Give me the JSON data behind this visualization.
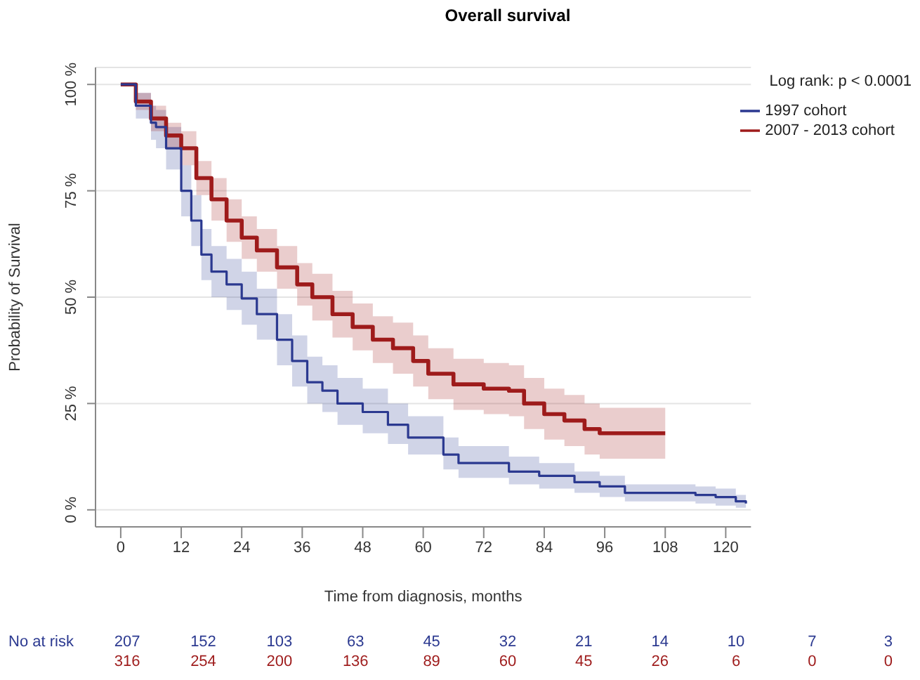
{
  "chart_data": {
    "type": "step",
    "title": "Overall survival",
    "xlabel": "Time from diagnosis, months",
    "ylabel": "Probability of Survival",
    "xlim": [
      -5,
      125
    ],
    "xticks": [
      0,
      12,
      24,
      36,
      48,
      60,
      72,
      84,
      96,
      108,
      120
    ],
    "ylim": [
      -4,
      104
    ],
    "yticks": [
      {
        "value": 0,
        "label": "0 %"
      },
      {
        "value": 25,
        "label": "25 %"
      },
      {
        "value": 50,
        "label": "50 %"
      },
      {
        "value": 75,
        "label": "75 %"
      },
      {
        "value": 100,
        "label": "100 %"
      }
    ],
    "grid": "y",
    "legend": "top right",
    "line_style": "solid",
    "series": [
      {
        "name": "1997 cohort",
        "color": "#2b3990",
        "x": [
          0,
          3,
          6,
          7,
          9,
          12,
          14,
          16,
          18,
          21,
          24,
          27,
          31,
          34,
          37,
          40,
          43,
          48,
          53,
          57,
          60,
          64,
          67,
          72,
          77,
          83,
          90,
          95,
          100,
          105,
          114,
          118,
          122,
          124
        ],
        "values": [
          100,
          95,
          91,
          90,
          85,
          75,
          68,
          60,
          56,
          53,
          49.7,
          46,
          40,
          35,
          30,
          28,
          25,
          23,
          20,
          17,
          17,
          13,
          11,
          11,
          9,
          8,
          6.5,
          5.5,
          4,
          4,
          3.5,
          3,
          2,
          1.5
        ],
        "lower": [
          100,
          92,
          87,
          85,
          80,
          69,
          62,
          54,
          50,
          47,
          43.5,
          40,
          34,
          29,
          25,
          23,
          20,
          18,
          15.5,
          13,
          13,
          9.5,
          7.5,
          7.5,
          6,
          5,
          4,
          3,
          2,
          2,
          1.5,
          1,
          0.5,
          0.5
        ],
        "upper": [
          100,
          98,
          95,
          94,
          90,
          81,
          74,
          66,
          62,
          59,
          56,
          52,
          46,
          41,
          36,
          34,
          31,
          28.5,
          25,
          22,
          22,
          17,
          15,
          15,
          12.5,
          11,
          9,
          8,
          6,
          6,
          5.5,
          5,
          3.5,
          3
        ]
      },
      {
        "name": "2007 - 2013 cohort",
        "color": "#9e1b1b",
        "x": [
          0,
          3,
          6,
          9,
          12,
          15,
          18,
          21,
          24,
          27,
          31,
          35,
          38,
          42,
          46,
          50,
          54,
          58,
          61,
          66,
          72,
          77,
          80,
          84,
          88,
          92,
          95,
          108
        ],
        "values": [
          100,
          96,
          92,
          88,
          85,
          78,
          73,
          68,
          64,
          61,
          57,
          53,
          50,
          46,
          43,
          40,
          38,
          35,
          32,
          29.5,
          28.5,
          28,
          25,
          22.5,
          21,
          19,
          18,
          18
        ],
        "lower": [
          100,
          94,
          89,
          85,
          81,
          74,
          68,
          63,
          59,
          56,
          52,
          48,
          44.5,
          40.5,
          37.5,
          34.5,
          32,
          29,
          26,
          23.5,
          22.5,
          22,
          19,
          16.5,
          15,
          13,
          12,
          12
        ],
        "upper": [
          100,
          98,
          95,
          91,
          89,
          82,
          78,
          73,
          69,
          66,
          62,
          58,
          55.5,
          51.5,
          48.5,
          45.5,
          44,
          41,
          38,
          35.5,
          34.5,
          34,
          31,
          28.5,
          27,
          25,
          24,
          24
        ]
      }
    ],
    "annotations": [
      "Log rank: p < 0.0001",
      "No at risk",
      "207",
      "152",
      "103",
      "63",
      "45",
      "32",
      "21",
      "14",
      "10",
      "7",
      "3",
      "316",
      "254",
      "200",
      "136",
      "89",
      "60",
      "45",
      "26",
      "6",
      "0",
      "0"
    ]
  }
}
